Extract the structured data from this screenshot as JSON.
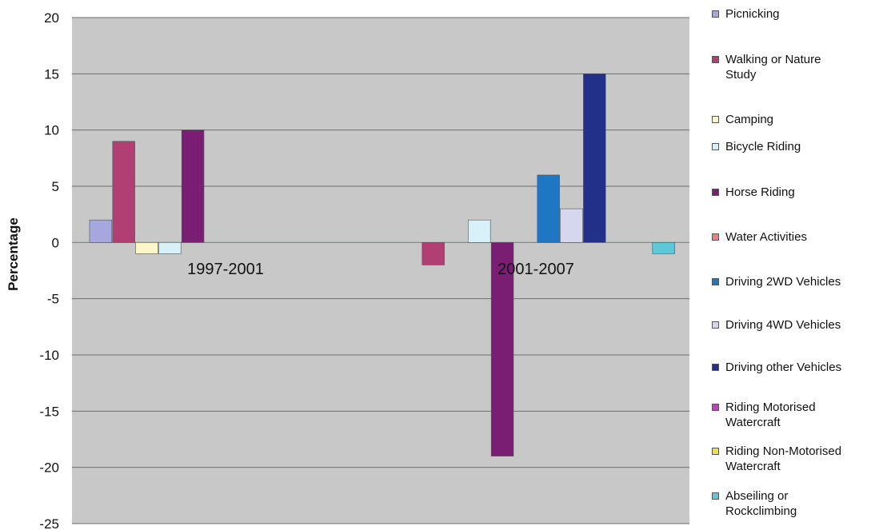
{
  "chart_data": {
    "type": "bar",
    "ylabel": "Percentage",
    "ylim": [
      -25,
      20
    ],
    "yticks": [
      -25,
      -20,
      -15,
      -10,
      -5,
      0,
      5,
      10,
      15,
      20
    ],
    "grid": true,
    "legend_position": "right",
    "categories": [
      "1997-2001",
      "2001-2007"
    ],
    "series": [
      {
        "name": "Picnicking",
        "color": "#a7a7e0",
        "values": [
          2,
          0
        ]
      },
      {
        "name": "Walking or Nature Study",
        "color": "#b23f73",
        "values": [
          9,
          -2
        ]
      },
      {
        "name": "Camping",
        "color": "#fbf6cc",
        "values": [
          -1,
          0
        ]
      },
      {
        "name": "Bicycle Riding",
        "color": "#d8f0f8",
        "values": [
          -1,
          2
        ]
      },
      {
        "name": "Horse Riding",
        "color": "#7a1e74",
        "values": [
          10,
          -19
        ]
      },
      {
        "name": "Water Activities",
        "color": "#f08080",
        "values": [
          0,
          0
        ]
      },
      {
        "name": "Driving 2WD Vehicles",
        "color": "#1f77c4",
        "values": [
          0,
          6
        ]
      },
      {
        "name": "Driving 4WD Vehicles",
        "color": "#d6d6ee",
        "values": [
          0,
          3
        ]
      },
      {
        "name": "Driving other Vehicles",
        "color": "#22308a",
        "values": [
          0,
          15
        ]
      },
      {
        "name": "Riding Motorised Watercraft",
        "color": "#c040c0",
        "values": [
          0,
          0
        ]
      },
      {
        "name": "Riding Non-Motorised Watercraft",
        "color": "#f0e040",
        "values": [
          0,
          0
        ]
      },
      {
        "name": "Abseiling or Rockclimbing",
        "color": "#5cc8d8",
        "values": [
          0,
          -1
        ]
      }
    ],
    "legend_labels": [
      [
        "Picnicking"
      ],
      [
        "Walking or Nature",
        "Study"
      ],
      [
        "Camping"
      ],
      [
        "Bicycle Riding"
      ],
      [
        "Horse Riding"
      ],
      [
        "Water Activities"
      ],
      [
        "Driving 2WD Vehicles"
      ],
      [
        "Driving 4WD Vehicles"
      ],
      [
        "Driving other Vehicles"
      ],
      [
        "Riding Motorised",
        "Watercraft"
      ],
      [
        "Riding Non-Motorised",
        "Watercraft"
      ],
      [
        "Abseiling or",
        "Rockclimbing"
      ]
    ]
  }
}
